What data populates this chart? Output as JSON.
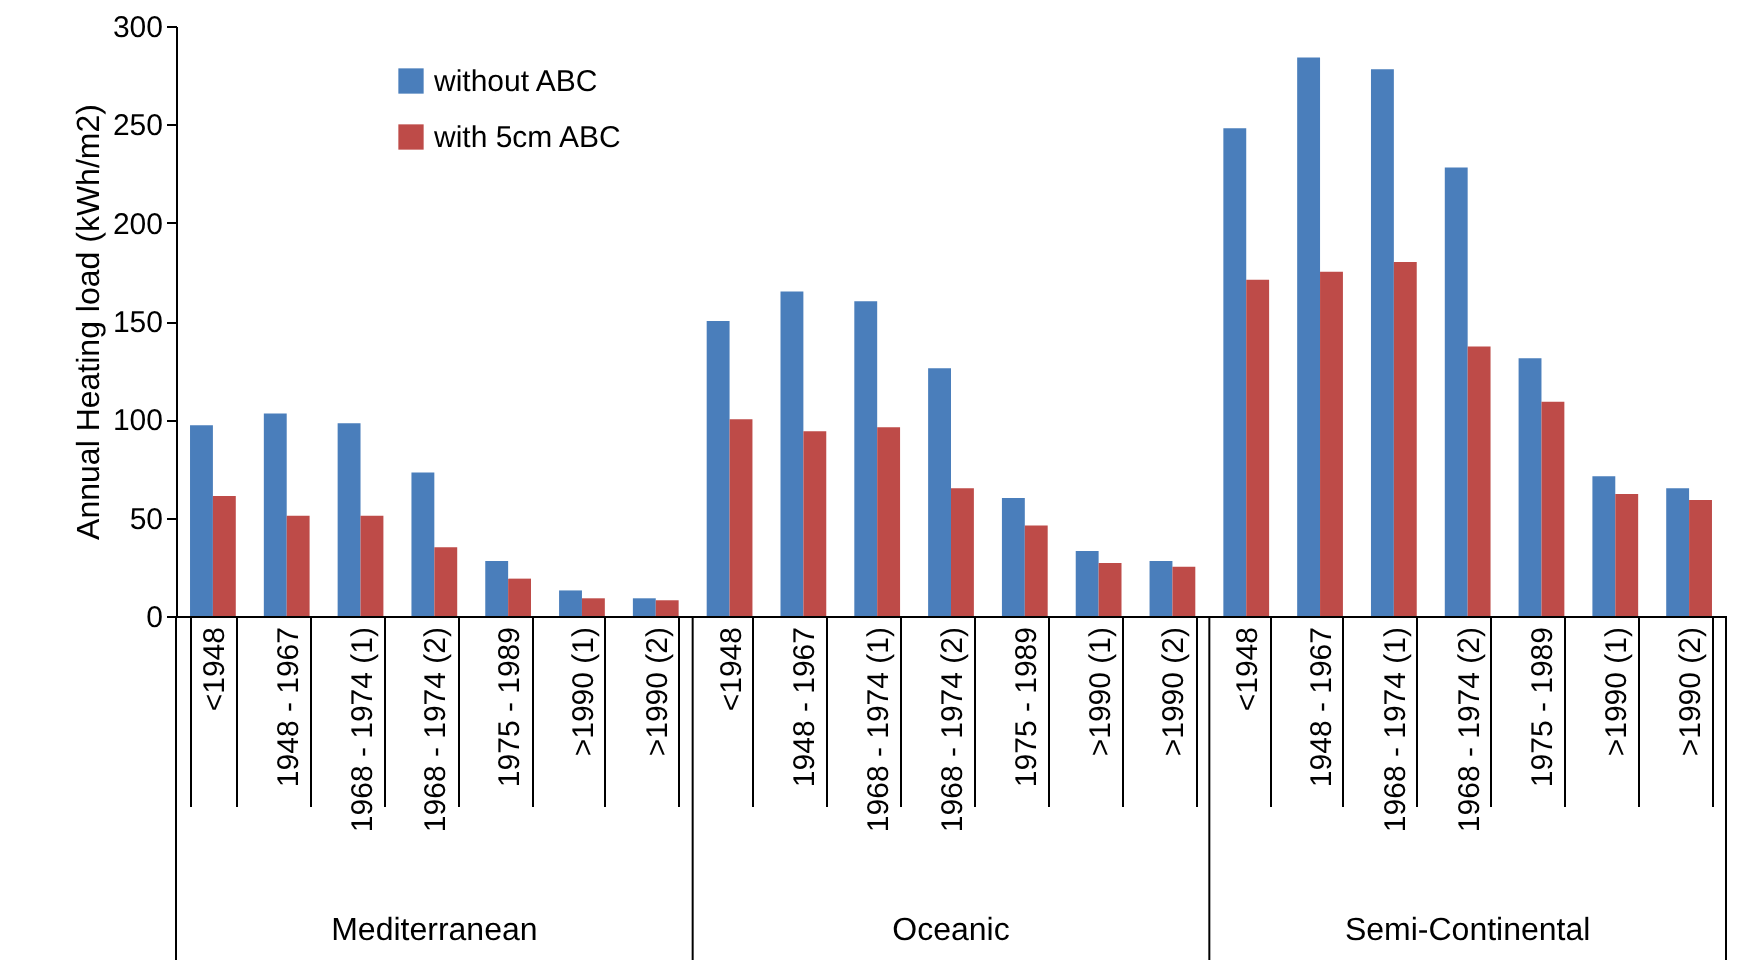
{
  "chart_data": {
    "type": "bar",
    "ylabel": "Annual Heating load (kWh/m2)",
    "categories": [
      "<1948",
      "1948 - 1967",
      "1968 - 1974 (1)",
      "1968 - 1974 (2)",
      "1975 - 1989",
      ">1990 (1)",
      ">1990 (2)",
      "<1948",
      "1948 - 1967",
      "1968 - 1974 (1)",
      "1968 - 1974 (2)",
      "1975 - 1989",
      ">1990 (1)",
      ">1990 (2)",
      "<1948",
      "1948 - 1967",
      "1968 - 1974 (1)",
      "1968 - 1974 (2)",
      "1975 - 1989",
      ">1990 (1)",
      ">1990 (2)"
    ],
    "series": [
      {
        "name": "without ABC",
        "color": "#4a7ebb",
        "values": [
          97,
          103,
          98,
          73,
          28,
          13,
          9,
          150,
          165,
          160,
          126,
          60,
          33,
          28,
          248,
          284,
          278,
          228,
          131,
          71,
          65
        ]
      },
      {
        "name": "with 5cm ABC",
        "color": "#be4b48",
        "values": [
          61,
          51,
          51,
          35,
          19,
          9,
          8,
          100,
          94,
          96,
          65,
          46,
          27,
          25,
          171,
          175,
          180,
          137,
          109,
          62,
          59
        ]
      }
    ],
    "annotations": [
      "Mediterranean",
      "Oceanic",
      "Semi-Continental"
    ],
    "ylim": [
      0,
      300
    ],
    "yticks": [
      0,
      50,
      100,
      150,
      200,
      250,
      300
    ],
    "grid": false,
    "legend": "top left"
  }
}
